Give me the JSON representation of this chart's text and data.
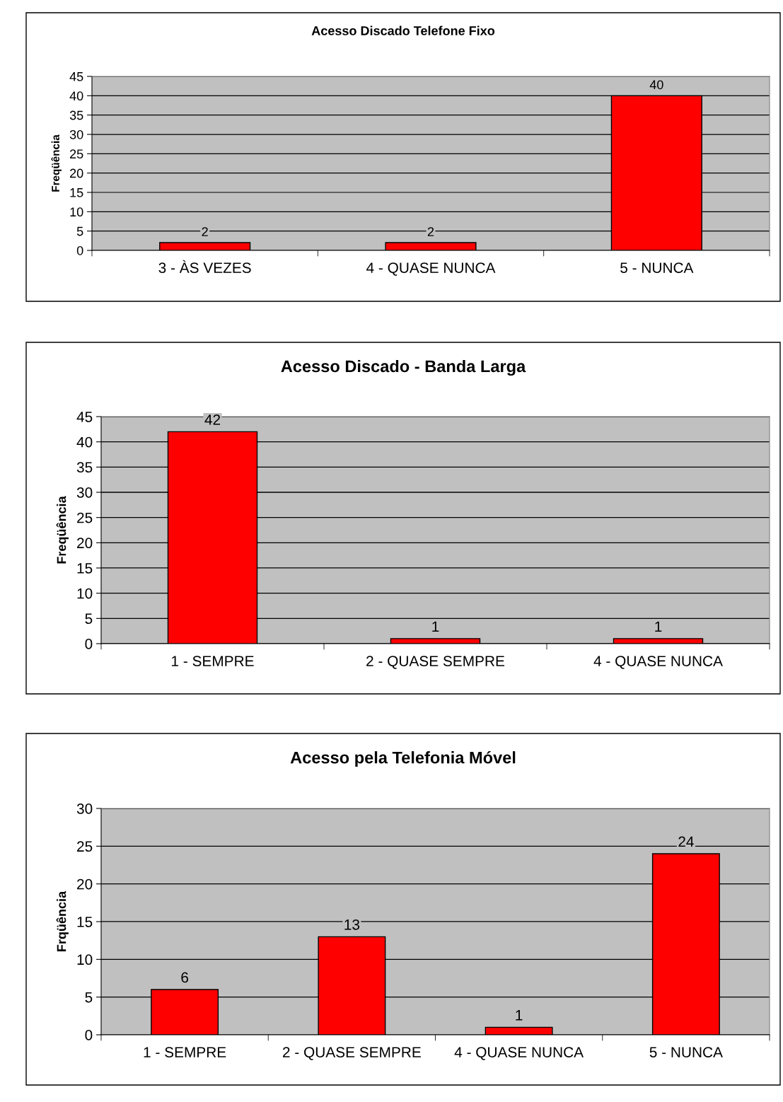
{
  "chart_data": [
    {
      "type": "bar",
      "title": "Acesso Discado Telefone Fixo",
      "ylabel": "Freqüência",
      "categories": [
        "3 - ÀS VEZES",
        "4 - QUASE NUNCA",
        "5 - NUNCA"
      ],
      "values": [
        2,
        2,
        40
      ],
      "color": "#ff0000",
      "ylim": [
        0,
        45
      ],
      "yticks": [
        0,
        5,
        10,
        15,
        20,
        25,
        30,
        35,
        40,
        45
      ],
      "grid": "y",
      "data_labels": true
    },
    {
      "type": "bar",
      "title": "Acesso Discado - Banda Larga",
      "ylabel": "Freqüência",
      "categories": [
        "1 - SEMPRE",
        "2 - QUASE SEMPRE",
        "4 - QUASE NUNCA"
      ],
      "values": [
        42,
        1,
        1
      ],
      "color": "#ff0000",
      "ylim": [
        0,
        45
      ],
      "yticks": [
        0,
        5,
        10,
        15,
        20,
        25,
        30,
        35,
        40,
        45
      ],
      "grid": "y",
      "data_labels": true
    },
    {
      "type": "bar",
      "title": "Acesso pela Telefonia Móvel",
      "ylabel": "Frqüência",
      "categories": [
        "1 - SEMPRE",
        "2 - QUASE SEMPRE",
        "4 - QUASE NUNCA",
        "5 - NUNCA"
      ],
      "values": [
        6,
        13,
        1,
        24
      ],
      "color": "#ff0000",
      "ylim": [
        0,
        30
      ],
      "yticks": [
        0,
        5,
        10,
        15,
        20,
        25,
        30
      ],
      "grid": "y",
      "data_labels": true
    }
  ]
}
